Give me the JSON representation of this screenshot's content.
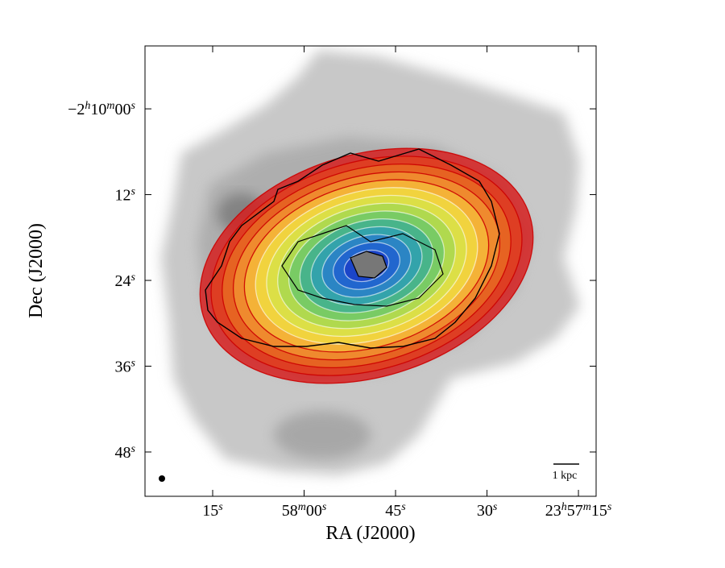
{
  "chart_data": {
    "type": "image",
    "xlabel": "RA (J2000)",
    "ylabel": "Dec (J2000)",
    "xlim": [
      86306.1,
      86232.1
    ],
    "xticks": [
      {
        "value": 86295,
        "label": "15s"
      },
      {
        "value": 86280,
        "label": "58m00s"
      },
      {
        "value": 86265,
        "label": "45s"
      },
      {
        "value": 86250,
        "label": "30s"
      },
      {
        "value": 86235,
        "label": "23h57m15s"
      }
    ],
    "ylim": [
      -7854.2,
      -7791.2
    ],
    "yticks": [
      {
        "value": -7800,
        "label": "−2h10m00s"
      },
      {
        "value": -7812,
        "label": "12s"
      },
      {
        "value": -7824,
        "label": "24s"
      },
      {
        "value": -7836,
        "label": "36s"
      },
      {
        "value": -7848,
        "label": "48s"
      }
    ],
    "scale_bar_label": "1 kpc"
  }
}
